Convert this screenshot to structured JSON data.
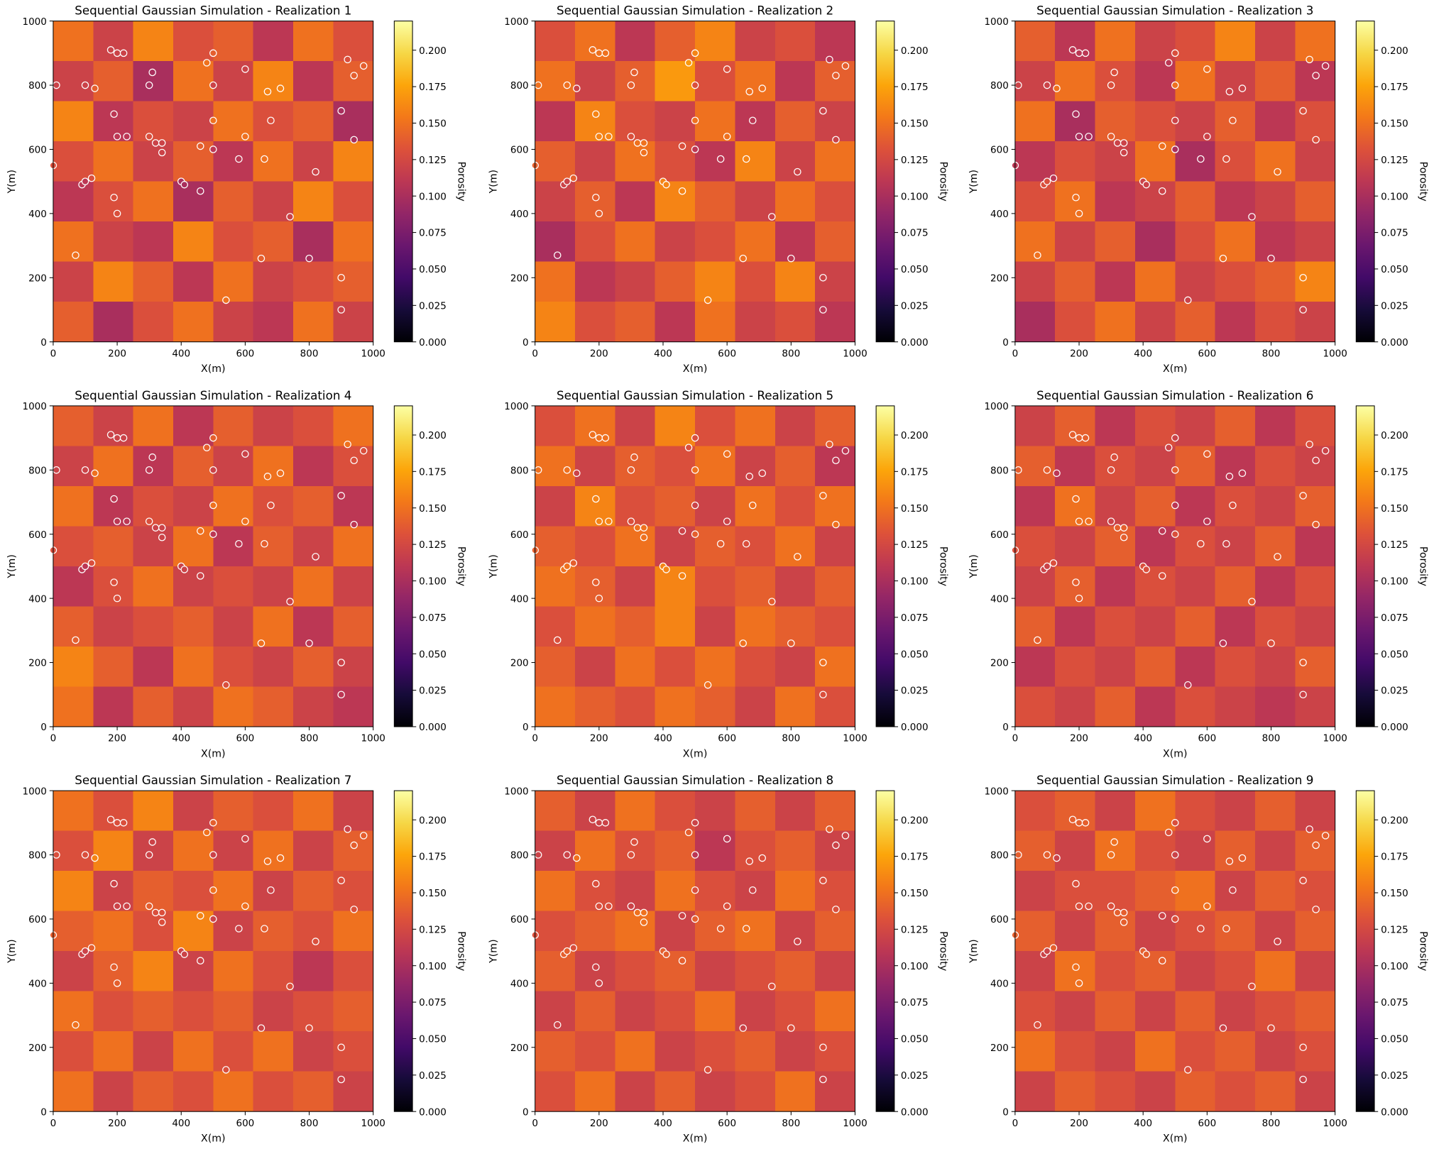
{
  "chart_data": [
    {
      "type": "heatmap",
      "title": "Sequential Gaussian Simulation - Realization 1",
      "z": [
        [
          0.15,
          0.12,
          0.16,
          0.13,
          0.14,
          0.11,
          0.15,
          0.13
        ],
        [
          0.12,
          0.14,
          0.1,
          0.15,
          0.12,
          0.16,
          0.11,
          0.14
        ],
        [
          0.16,
          0.11,
          0.13,
          0.12,
          0.15,
          0.13,
          0.14,
          0.1
        ],
        [
          0.13,
          0.15,
          0.12,
          0.14,
          0.11,
          0.15,
          0.12,
          0.16
        ],
        [
          0.11,
          0.13,
          0.15,
          0.1,
          0.14,
          0.12,
          0.16,
          0.13
        ],
        [
          0.15,
          0.12,
          0.11,
          0.16,
          0.13,
          0.14,
          0.1,
          0.15
        ],
        [
          0.12,
          0.16,
          0.14,
          0.11,
          0.15,
          0.12,
          0.13,
          0.14
        ],
        [
          0.14,
          0.1,
          0.13,
          0.15,
          0.12,
          0.11,
          0.15,
          0.12
        ]
      ]
    },
    {
      "type": "heatmap",
      "title": "Sequential Gaussian Simulation - Realization 2",
      "z": [
        [
          0.13,
          0.15,
          0.11,
          0.14,
          0.16,
          0.12,
          0.13,
          0.11
        ],
        [
          0.15,
          0.12,
          0.14,
          0.17,
          0.13,
          0.15,
          0.11,
          0.14
        ],
        [
          0.11,
          0.16,
          0.13,
          0.12,
          0.15,
          0.11,
          0.14,
          0.12
        ],
        [
          0.14,
          0.12,
          0.15,
          0.13,
          0.11,
          0.16,
          0.12,
          0.15
        ],
        [
          0.12,
          0.14,
          0.11,
          0.16,
          0.14,
          0.12,
          0.15,
          0.13
        ],
        [
          0.1,
          0.13,
          0.15,
          0.12,
          0.13,
          0.15,
          0.11,
          0.14
        ],
        [
          0.15,
          0.11,
          0.12,
          0.14,
          0.16,
          0.13,
          0.16,
          0.12
        ],
        [
          0.16,
          0.13,
          0.14,
          0.11,
          0.15,
          0.12,
          0.13,
          0.11
        ]
      ]
    },
    {
      "type": "heatmap",
      "title": "Sequential Gaussian Simulation - Realization 3",
      "z": [
        [
          0.14,
          0.11,
          0.15,
          0.12,
          0.13,
          0.16,
          0.12,
          0.15
        ],
        [
          0.12,
          0.15,
          0.13,
          0.11,
          0.15,
          0.12,
          0.14,
          0.11
        ],
        [
          0.15,
          0.1,
          0.14,
          0.13,
          0.12,
          0.14,
          0.11,
          0.13
        ],
        [
          0.11,
          0.13,
          0.12,
          0.15,
          0.1,
          0.13,
          0.15,
          0.12
        ],
        [
          0.13,
          0.15,
          0.11,
          0.12,
          0.14,
          0.11,
          0.12,
          0.14
        ],
        [
          0.15,
          0.12,
          0.14,
          0.1,
          0.13,
          0.15,
          0.11,
          0.12
        ],
        [
          0.12,
          0.14,
          0.11,
          0.15,
          0.12,
          0.13,
          0.14,
          0.16
        ],
        [
          0.1,
          0.13,
          0.15,
          0.12,
          0.14,
          0.11,
          0.13,
          0.12
        ]
      ]
    },
    {
      "type": "heatmap",
      "title": "Sequential Gaussian Simulation - Realization 4",
      "z": [
        [
          0.14,
          0.12,
          0.15,
          0.11,
          0.14,
          0.12,
          0.13,
          0.15
        ],
        [
          0.12,
          0.15,
          0.11,
          0.14,
          0.12,
          0.15,
          0.11,
          0.13
        ],
        [
          0.15,
          0.11,
          0.13,
          0.12,
          0.15,
          0.13,
          0.14,
          0.11
        ],
        [
          0.13,
          0.14,
          0.12,
          0.15,
          0.11,
          0.14,
          0.12,
          0.15
        ],
        [
          0.11,
          0.13,
          0.15,
          0.12,
          0.13,
          0.12,
          0.15,
          0.12
        ],
        [
          0.14,
          0.12,
          0.13,
          0.14,
          0.12,
          0.15,
          0.11,
          0.14
        ],
        [
          0.16,
          0.14,
          0.11,
          0.15,
          0.13,
          0.12,
          0.14,
          0.12
        ],
        [
          0.15,
          0.11,
          0.14,
          0.12,
          0.15,
          0.14,
          0.12,
          0.11
        ]
      ]
    },
    {
      "type": "heatmap",
      "title": "Sequential Gaussian Simulation - Realization 5",
      "z": [
        [
          0.13,
          0.15,
          0.12,
          0.16,
          0.13,
          0.15,
          0.12,
          0.14
        ],
        [
          0.15,
          0.12,
          0.14,
          0.13,
          0.15,
          0.12,
          0.14,
          0.11
        ],
        [
          0.12,
          0.16,
          0.13,
          0.14,
          0.12,
          0.15,
          0.13,
          0.15
        ],
        [
          0.14,
          0.13,
          0.15,
          0.12,
          0.14,
          0.13,
          0.15,
          0.12
        ],
        [
          0.15,
          0.14,
          0.12,
          0.16,
          0.13,
          0.14,
          0.12,
          0.14
        ],
        [
          0.13,
          0.15,
          0.14,
          0.16,
          0.12,
          0.15,
          0.14,
          0.13
        ],
        [
          0.14,
          0.12,
          0.15,
          0.13,
          0.15,
          0.13,
          0.12,
          0.15
        ],
        [
          0.15,
          0.14,
          0.13,
          0.15,
          0.14,
          0.12,
          0.15,
          0.13
        ]
      ]
    },
    {
      "type": "heatmap",
      "title": "Sequential Gaussian Simulation - Realization 6",
      "z": [
        [
          0.12,
          0.14,
          0.11,
          0.13,
          0.12,
          0.14,
          0.11,
          0.13
        ],
        [
          0.14,
          0.11,
          0.13,
          0.12,
          0.14,
          0.11,
          0.13,
          0.12
        ],
        [
          0.11,
          0.15,
          0.12,
          0.14,
          0.11,
          0.13,
          0.12,
          0.14
        ],
        [
          0.13,
          0.12,
          0.14,
          0.11,
          0.13,
          0.12,
          0.14,
          0.11
        ],
        [
          0.12,
          0.14,
          0.11,
          0.13,
          0.12,
          0.14,
          0.11,
          0.13
        ],
        [
          0.14,
          0.11,
          0.13,
          0.12,
          0.14,
          0.11,
          0.13,
          0.12
        ],
        [
          0.11,
          0.13,
          0.12,
          0.14,
          0.11,
          0.13,
          0.12,
          0.14
        ],
        [
          0.13,
          0.12,
          0.14,
          0.11,
          0.13,
          0.12,
          0.11,
          0.12
        ]
      ]
    },
    {
      "type": "heatmap",
      "title": "Sequential Gaussian Simulation - Realization 7",
      "z": [
        [
          0.15,
          0.13,
          0.16,
          0.12,
          0.14,
          0.13,
          0.15,
          0.12
        ],
        [
          0.13,
          0.16,
          0.12,
          0.15,
          0.12,
          0.15,
          0.12,
          0.14
        ],
        [
          0.16,
          0.12,
          0.14,
          0.13,
          0.15,
          0.12,
          0.14,
          0.13
        ],
        [
          0.14,
          0.15,
          0.13,
          0.16,
          0.12,
          0.14,
          0.13,
          0.15
        ],
        [
          0.12,
          0.14,
          0.16,
          0.12,
          0.15,
          0.13,
          0.11,
          0.13
        ],
        [
          0.15,
          0.13,
          0.14,
          0.13,
          0.14,
          0.12,
          0.13,
          0.14
        ],
        [
          0.13,
          0.15,
          0.12,
          0.15,
          0.13,
          0.15,
          0.12,
          0.13
        ],
        [
          0.15,
          0.12,
          0.14,
          0.13,
          0.15,
          0.13,
          0.14,
          0.12
        ]
      ]
    },
    {
      "type": "heatmap",
      "title": "Sequential Gaussian Simulation - Realization 8",
      "z": [
        [
          0.14,
          0.12,
          0.15,
          0.13,
          0.12,
          0.14,
          0.12,
          0.14
        ],
        [
          0.12,
          0.15,
          0.13,
          0.14,
          0.11,
          0.13,
          0.14,
          0.12
        ],
        [
          0.15,
          0.13,
          0.12,
          0.15,
          0.13,
          0.12,
          0.15,
          0.13
        ],
        [
          0.13,
          0.14,
          0.15,
          0.12,
          0.14,
          0.15,
          0.12,
          0.14
        ],
        [
          0.14,
          0.12,
          0.13,
          0.14,
          0.12,
          0.13,
          0.14,
          0.12
        ],
        [
          0.12,
          0.14,
          0.12,
          0.13,
          0.15,
          0.12,
          0.13,
          0.15
        ],
        [
          0.14,
          0.13,
          0.15,
          0.12,
          0.13,
          0.14,
          0.12,
          0.13
        ],
        [
          0.13,
          0.15,
          0.12,
          0.14,
          0.12,
          0.13,
          0.15,
          0.12
        ]
      ]
    },
    {
      "type": "heatmap",
      "title": "Sequential Gaussian Simulation - Realization 9",
      "z": [
        [
          0.13,
          0.14,
          0.12,
          0.15,
          0.13,
          0.12,
          0.14,
          0.12
        ],
        [
          0.14,
          0.12,
          0.15,
          0.13,
          0.12,
          0.14,
          0.12,
          0.14
        ],
        [
          0.12,
          0.13,
          0.13,
          0.14,
          0.15,
          0.12,
          0.14,
          0.13
        ],
        [
          0.14,
          0.12,
          0.14,
          0.12,
          0.13,
          0.14,
          0.12,
          0.14
        ],
        [
          0.12,
          0.15,
          0.13,
          0.14,
          0.12,
          0.13,
          0.15,
          0.12
        ],
        [
          0.13,
          0.12,
          0.14,
          0.12,
          0.14,
          0.12,
          0.13,
          0.14
        ],
        [
          0.15,
          0.13,
          0.12,
          0.15,
          0.13,
          0.14,
          0.12,
          0.13
        ],
        [
          0.12,
          0.14,
          0.13,
          0.12,
          0.14,
          0.13,
          0.14,
          0.12
        ]
      ]
    }
  ],
  "axes": {
    "xlabel": "X(m)",
    "ylabel": "Y(m)",
    "xlim": [
      0,
      1000
    ],
    "ylim": [
      0,
      1000
    ],
    "xticks": [
      0,
      200,
      400,
      600,
      800,
      1000
    ],
    "yticks": [
      0,
      200,
      400,
      600,
      800,
      1000
    ]
  },
  "colorbar": {
    "label": "Porosity",
    "colormap": "inferno",
    "lim": [
      0,
      0.22
    ],
    "ticks": [
      {
        "value": 0,
        "label": "0.000"
      },
      {
        "value": 0.025,
        "label": "0.025"
      },
      {
        "value": 0.05,
        "label": "0.050"
      },
      {
        "value": 0.075,
        "label": "0.075"
      },
      {
        "value": 0.1,
        "label": "0.100"
      },
      {
        "value": 0.125,
        "label": "0.125"
      },
      {
        "value": 0.15,
        "label": "0.150"
      },
      {
        "value": 0.175,
        "label": "0.175"
      },
      {
        "value": 0.2,
        "label": "0.200"
      }
    ]
  },
  "wells": {
    "marker_edge": "#ffffff",
    "x": [
      10,
      100,
      130,
      180,
      200,
      220,
      300,
      310,
      480,
      500,
      500,
      600,
      670,
      710,
      920,
      970,
      940,
      190,
      200,
      230,
      300,
      320,
      340,
      340,
      500,
      680,
      900,
      600,
      460,
      500,
      580,
      660,
      940,
      0,
      90,
      100,
      120,
      190,
      200,
      400,
      410,
      460,
      820,
      740,
      70,
      650,
      800,
      540,
      900,
      900
    ],
    "y": [
      800,
      800,
      790,
      910,
      900,
      900,
      800,
      840,
      870,
      900,
      800,
      850,
      780,
      790,
      880,
      860,
      830,
      710,
      640,
      640,
      640,
      620,
      620,
      590,
      690,
      690,
      720,
      640,
      610,
      600,
      570,
      570,
      630,
      550,
      490,
      500,
      510,
      450,
      400,
      500,
      490,
      470,
      530,
      390,
      270,
      260,
      260,
      130,
      200,
      100
    ]
  }
}
